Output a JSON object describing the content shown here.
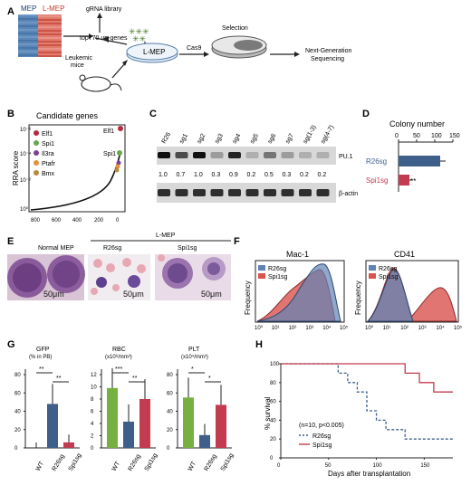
{
  "figure": {
    "panel_labels": [
      "A",
      "B",
      "C",
      "D",
      "E",
      "F",
      "G",
      "H"
    ],
    "colors": {
      "mep": "#5b87b8",
      "lmep": "#d9534f",
      "r26": "#3e5f8a",
      "spi1": "#c23b4e",
      "wt": "#76b041",
      "elf1": "#b5293c",
      "spi1dot": "#6aa84f",
      "il3ra": "#7b3f99",
      "ptafr": "#e69138",
      "bmx": "#b58a3c"
    }
  },
  "panelA": {
    "mep_label": "MEP",
    "lmep_label": "L-MEP",
    "grna_label": "gRNA library",
    "top_label": "top770 up-genes",
    "leukemic_label": "Leukemic",
    "mice_label": "mice",
    "dish_label": "L-MEP",
    "cas9_label": "Cas9",
    "selection_label": "Selection",
    "ngs_label1": "Next-Generation",
    "ngs_label2": "Sequencing"
  },
  "panelB": {
    "title": "Candidate genes",
    "ylabel": "RRA score",
    "legend": [
      "Elf1",
      "Spi1",
      "Il3ra",
      "Ptafr",
      "Bmx"
    ],
    "xticks": [
      "800",
      "600",
      "400",
      "200",
      "0"
    ],
    "yticks": [
      "10⁻⁶",
      "10⁻⁴",
      "10⁻²",
      "10⁰"
    ],
    "annot_elf1": "Elf1",
    "annot_spi1": "Spi1"
  },
  "panelC": {
    "lanes": [
      "R26",
      "sg1",
      "sg2",
      "sg3",
      "sg4",
      "sg5",
      "sg6",
      "sg7",
      "sg(1-3)",
      "sg(4-7)"
    ],
    "values": [
      "1.0",
      "0.7",
      "1.0",
      "0.3",
      "0.9",
      "0.2",
      "0.5",
      "0.3",
      "0.2",
      "0.2"
    ],
    "pu1_label": "PU.1",
    "actin_label": "β-actin"
  },
  "panelD": {
    "title": "Colony number",
    "xticks": [
      "0",
      "50",
      "100",
      "150"
    ],
    "categories": [
      "R26sg",
      "Spi1sg"
    ],
    "values": [
      115,
      30
    ],
    "errors": [
      15,
      6
    ],
    "sig": "**"
  },
  "panelE": {
    "label_normal": "Normal MEP",
    "label_lmep": "L-MEP",
    "label_r26": "R26sg",
    "label_spi1": "Spi1sg",
    "scale": "50μm"
  },
  "panelF": {
    "titles": [
      "Mac-1",
      "CD41"
    ],
    "ylabel": "Frequency",
    "xticks": [
      "10⁰",
      "10¹",
      "10²",
      "10³",
      "10⁴",
      "10⁵"
    ],
    "legend": [
      "R26sg",
      "Spi1sg"
    ]
  },
  "panelG": {
    "charts": [
      {
        "title": "GFP",
        "subtitle": "(% in PB)",
        "yticks": [
          "0",
          "20",
          "40",
          "60",
          "80"
        ],
        "values": [
          0,
          48,
          6
        ],
        "ymax": 80,
        "sig1": "**",
        "sig2": "**"
      },
      {
        "title": "RBC",
        "subtitle": "(x10⁶/mm³)",
        "yticks": [
          "0",
          "2",
          "4",
          "6",
          "8",
          "10",
          "12"
        ],
        "values": [
          9.8,
          4.3,
          8.0
        ],
        "ymax": 12,
        "sig1": "***",
        "sig2": "**"
      },
      {
        "title": "PLT",
        "subtitle": "(x10⁴/mm³)",
        "yticks": [
          "0",
          "20",
          "40",
          "60",
          "80"
        ],
        "values": [
          55,
          14,
          47
        ],
        "ymax": 80,
        "sig1": "*",
        "sig2": "*"
      }
    ],
    "categories": [
      "WT",
      "R26sg",
      "Spi1sg"
    ]
  },
  "panelH": {
    "ylabel": "% survival",
    "xlabel": "Days after transplantation",
    "yticks": [
      "0",
      "20",
      "40",
      "60",
      "80",
      "100"
    ],
    "xticks": [
      "0",
      "50",
      "100",
      "150"
    ],
    "stat": "(n=10, p<0.005)",
    "legend": [
      "R26sg",
      "Spi1sg"
    ]
  },
  "chart_data": [
    {
      "type": "bar",
      "title": "Colony number",
      "categories": [
        "R26sg",
        "Spi1sg"
      ],
      "values": [
        115,
        30
      ],
      "xlim": [
        0,
        150
      ]
    },
    {
      "type": "bar",
      "title": "GFP",
      "categories": [
        "WT",
        "R26sg",
        "Spi1sg"
      ],
      "values": [
        0,
        48,
        6
      ],
      "ylim": [
        0,
        80
      ]
    },
    {
      "type": "bar",
      "title": "RBC",
      "categories": [
        "WT",
        "R26sg",
        "Spi1sg"
      ],
      "values": [
        9.8,
        4.3,
        8.0
      ],
      "ylim": [
        0,
        12
      ]
    },
    {
      "type": "bar",
      "title": "PLT",
      "categories": [
        "WT",
        "R26sg",
        "Spi1sg"
      ],
      "values": [
        55,
        14,
        47
      ],
      "ylim": [
        0,
        80
      ]
    },
    {
      "type": "line",
      "title": "",
      "xlabel": "Days after transplantation",
      "ylabel": "% survival",
      "xlim": [
        0,
        180
      ],
      "ylim": [
        0,
        100
      ],
      "series": [
        {
          "name": "R26sg",
          "x": [
            0,
            50,
            60,
            70,
            80,
            90,
            100,
            110,
            120,
            130,
            145,
            150,
            180
          ],
          "y": [
            100,
            100,
            90,
            80,
            70,
            50,
            40,
            30,
            30,
            20,
            20,
            20,
            20
          ]
        },
        {
          "name": "Spi1sg",
          "x": [
            0,
            120,
            130,
            145,
            160,
            180
          ],
          "y": [
            100,
            100,
            90,
            80,
            70,
            70
          ]
        }
      ]
    }
  ]
}
